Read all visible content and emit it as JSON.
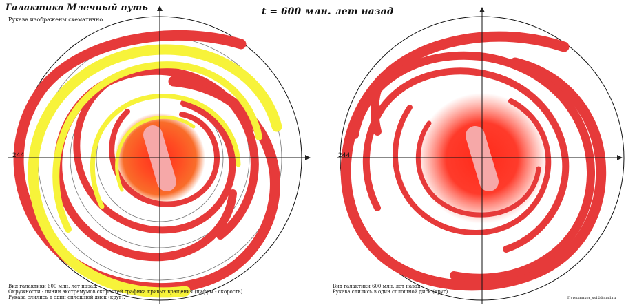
{
  "header": {
    "title": "Галактика Млечный путь",
    "subtitle": "Рукава изображены схематично.",
    "time_label": "t = 600 млн. лет назад"
  },
  "left_panel": {
    "axis_value_left": "244",
    "notes": [
      "Вид галактики 600 млн. лет назад.",
      "Окружности - линии экстремумов скоростей графика кривых вращения (цифры - скорость).",
      "Рукава слились в один сплошной диск (круг)."
    ]
  },
  "right_panel": {
    "axis_value_left": "244",
    "notes": [
      "Вид галактики 600 млн. лет назад.",
      "Рукава слились в один сплошной диск (круг)."
    ]
  },
  "footer": {
    "signature": "Путешников_ss12@mail.ru"
  },
  "style": {
    "red": "#e63a3a",
    "yellow": "#f7f33a",
    "bar": "#f6a8a8",
    "core": "#ff2f1f"
  }
}
